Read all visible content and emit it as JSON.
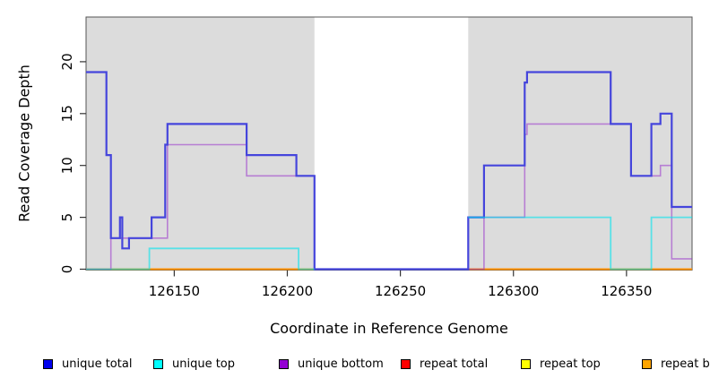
{
  "chart_data": {
    "type": "line",
    "subtype": "step-coverage",
    "title": "",
    "xlabel": "Coordinate in Reference Genome",
    "ylabel": "Read Coverage Depth",
    "xlim": [
      126111,
      126379
    ],
    "ylim": [
      0,
      24.3
    ],
    "x_ticks": [
      "126150",
      "126200",
      "126250",
      "126300",
      "126350"
    ],
    "x_tick_values": [
      126150,
      126200,
      126250,
      126300,
      126350
    ],
    "y_ticks": [
      "0",
      "5",
      "10",
      "15",
      "20"
    ],
    "y_tick_values": [
      0,
      5,
      10,
      15,
      20
    ],
    "grid": false,
    "background_color": "#ffffff",
    "shaded_region_color": "#dcdcdc",
    "shaded_regions": [
      {
        "name": "repeat-region-left",
        "from": 126111,
        "to": 126212
      },
      {
        "name": "repeat-region-right",
        "from": 126280,
        "to": 126379
      }
    ],
    "series": [
      {
        "name": "repeat total",
        "color": "#ee0000",
        "width": 1.4,
        "opacity": 1,
        "segments": [
          [
            [
              126111,
              0
            ],
            [
              126212,
              0
            ]
          ],
          [
            [
              126280,
              0
            ],
            [
              126379,
              0
            ]
          ]
        ]
      },
      {
        "name": "repeat top",
        "color": "#ffff00",
        "width": 1.4,
        "opacity": 1,
        "segments": [
          [
            [
              126111,
              0
            ],
            [
              126212,
              0
            ]
          ],
          [
            [
              126280,
              0
            ],
            [
              126379,
              0
            ]
          ]
        ]
      },
      {
        "name": "repeat bottom",
        "color": "#ff9100",
        "width": 2,
        "opacity": 1,
        "segments": [
          [
            [
              126111,
              0
            ],
            [
              126212,
              0
            ]
          ],
          [
            [
              126280,
              0
            ],
            [
              126379,
              0
            ]
          ]
        ]
      },
      {
        "name": "unique bottom",
        "color": "#9932cc",
        "width": 1.6,
        "opacity": 0.55,
        "segments": [
          [
            [
              126111,
              0
            ],
            [
              126122,
              3
            ],
            [
              126147,
              12
            ],
            [
              126182,
              9
            ],
            [
              126212,
              0
            ],
            [
              126287,
              5
            ],
            [
              126305,
              13
            ],
            [
              126306,
              14
            ],
            [
              126352,
              9
            ],
            [
              126365,
              10
            ],
            [
              126370,
              1
            ],
            [
              126379,
              1
            ]
          ]
        ]
      },
      {
        "name": "unique total",
        "color": "#4545dc",
        "width": 2.2,
        "opacity": 1,
        "segments": [
          [
            [
              126111,
              19
            ],
            [
              126120,
              11
            ],
            [
              126122,
              3
            ],
            [
              126126,
              5
            ],
            [
              126127,
              2
            ],
            [
              126130,
              3
            ],
            [
              126140,
              5
            ],
            [
              126146,
              12
            ],
            [
              126147,
              14
            ],
            [
              126182,
              11
            ],
            [
              126204,
              9
            ],
            [
              126212,
              0
            ],
            [
              126280,
              5
            ],
            [
              126287,
              10
            ],
            [
              126305,
              18
            ],
            [
              126306,
              19
            ],
            [
              126343,
              14
            ],
            [
              126352,
              9
            ],
            [
              126361,
              14
            ],
            [
              126365,
              15
            ],
            [
              126370,
              6
            ],
            [
              126379,
              6
            ]
          ]
        ]
      },
      {
        "name": "unique top",
        "color": "#00e5ee",
        "width": 1.8,
        "opacity": 0.6,
        "segments": [
          [
            [
              126111,
              0
            ],
            [
              126139,
              2
            ],
            [
              126205,
              0
            ],
            [
              126212,
              0
            ]
          ],
          [
            [
              126280,
              5
            ],
            [
              126343,
              0
            ],
            [
              126361,
              5
            ],
            [
              126379,
              5
            ]
          ]
        ]
      }
    ],
    "legend": [
      {
        "label": "unique total",
        "color": "#0000ee"
      },
      {
        "label": "unique top",
        "color": "#00ffff"
      },
      {
        "label": "unique bottom",
        "color": "#9400d3"
      },
      {
        "label": "repeat total",
        "color": "#ff0000"
      },
      {
        "label": "repeat top",
        "color": "#ffff00"
      },
      {
        "label": "repeat bottom",
        "color": "#ffa500"
      }
    ],
    "legend_position": "bottom-horizontal"
  }
}
